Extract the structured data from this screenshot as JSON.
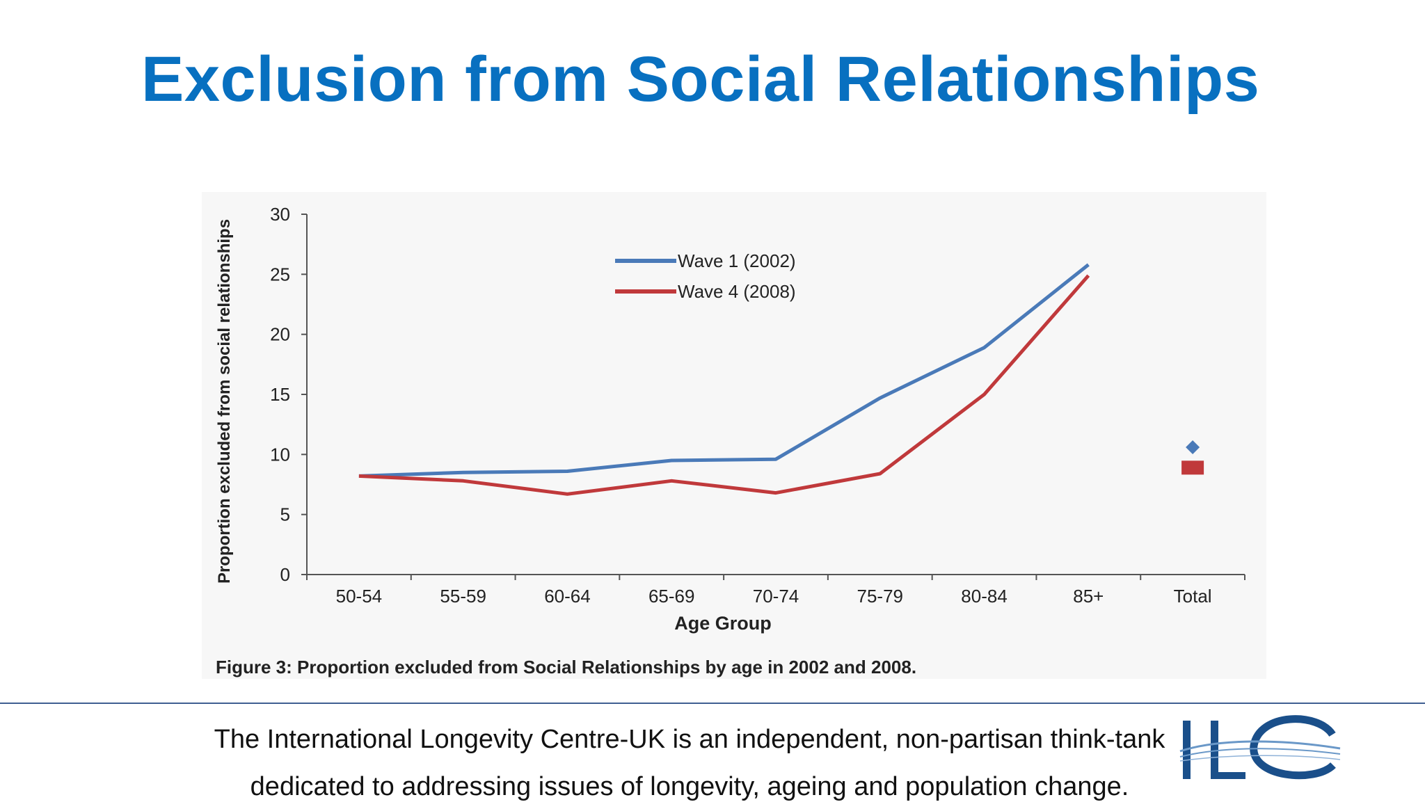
{
  "slide": {
    "title": "Exclusion from Social Relationships",
    "footer_line_1": "The International Longevity Centre-UK is an independent, non-partisan think-tank",
    "footer_line_2": "dedicated to addressing issues of longevity, ageing and population change.",
    "logo_icon": "ilc-logo-icon",
    "logo_text": "ILC",
    "accent_color": "#0870c0"
  },
  "chart_data": {
    "type": "line",
    "title": "",
    "caption": "Figure 3: Proportion excluded from Social Relationships by age in 2002 and 2008.",
    "xlabel": "Age Group",
    "ylabel": "Proportion excluded from social relationships",
    "ylim": [
      0,
      30
    ],
    "yticks": [
      0,
      5,
      10,
      15,
      20,
      25,
      30
    ],
    "categories": [
      "50-54",
      "55-59",
      "60-64",
      "65-69",
      "70-74",
      "75-79",
      "80-84",
      "85+",
      "Total"
    ],
    "series": [
      {
        "name": "Wave 1 (2002)",
        "color": "#4a7ab8",
        "marker": "diamond",
        "values": [
          8.2,
          8.5,
          8.6,
          9.5,
          9.6,
          14.7,
          18.9,
          25.8,
          null
        ],
        "total": 10.6
      },
      {
        "name": "Wave 4 (2008)",
        "color": "#c0393b",
        "marker": "square",
        "values": [
          8.2,
          7.8,
          6.7,
          7.8,
          6.8,
          8.4,
          15.0,
          24.9,
          null
        ],
        "total": 8.9
      }
    ],
    "legend_position": "top-center",
    "grid": false
  }
}
